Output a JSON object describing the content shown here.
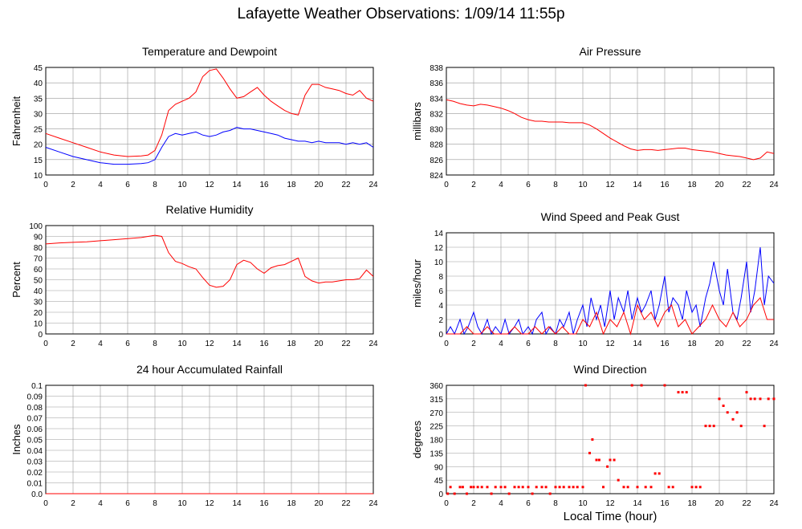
{
  "page": {
    "title": "Lafayette Weather Observations: 1/09/14 11:55p",
    "footer_xlabel": "Local Time (hour)"
  },
  "colors": {
    "series_red": "#ff0000",
    "series_blue": "#0000ff",
    "grid": "#999999",
    "frame": "#000000"
  },
  "chart_data": [
    {
      "id": "temp",
      "type": "line",
      "title": "Temperature and Dewpoint",
      "xlabel": "",
      "ylabel": "Fahrenheit",
      "xlim": [
        0,
        24
      ],
      "ylim": [
        10,
        45
      ],
      "xticks": [
        0,
        2,
        4,
        6,
        8,
        10,
        12,
        14,
        16,
        18,
        20,
        22,
        24
      ],
      "yticks": [
        10,
        15,
        20,
        25,
        30,
        35,
        40,
        45
      ],
      "grid": true,
      "series": [
        {
          "color": "#ff0000",
          "x": [
            0,
            1,
            2,
            3,
            4,
            5,
            6,
            7,
            7.5,
            8,
            8.5,
            9,
            9.5,
            10,
            10.5,
            11,
            11.5,
            12,
            12.5,
            13,
            13.5,
            14,
            14.5,
            15,
            15.5,
            16,
            16.5,
            17,
            17.5,
            18,
            18.5,
            19,
            19.5,
            20,
            20.5,
            21,
            21.5,
            22,
            22.5,
            23,
            23.5,
            24
          ],
          "y": [
            23.5,
            22,
            20.5,
            19,
            17.5,
            16.5,
            16,
            16.2,
            16.5,
            18,
            23,
            31,
            33,
            34,
            35,
            37,
            42,
            44,
            44.5,
            41.5,
            38,
            35,
            35.5,
            37,
            38.5,
            36,
            34,
            32.5,
            31,
            30,
            29.5,
            36,
            39.5,
            39.5,
            38.5,
            38,
            37.5,
            36.5,
            36,
            37.5,
            35,
            34
          ]
        },
        {
          "color": "#0000ff",
          "x": [
            0,
            1,
            2,
            3,
            4,
            5,
            6,
            7,
            7.5,
            8,
            8.5,
            9,
            9.5,
            10,
            10.5,
            11,
            11.5,
            12,
            12.5,
            13,
            13.5,
            14,
            14.5,
            15,
            15.5,
            16,
            16.5,
            17,
            17.5,
            18,
            18.5,
            19,
            19.5,
            20,
            20.5,
            21,
            21.5,
            22,
            22.5,
            23,
            23.5,
            24
          ],
          "y": [
            19,
            17.5,
            16,
            15,
            14,
            13.5,
            13.5,
            13.7,
            14,
            15,
            19,
            22.5,
            23.5,
            23,
            23.5,
            24,
            23,
            22.5,
            23,
            24,
            24.5,
            25.5,
            25,
            25,
            24.5,
            24,
            23.5,
            23,
            22,
            21.5,
            21,
            21,
            20.5,
            21,
            20.5,
            20.5,
            20.5,
            20,
            20.5,
            20,
            20.5,
            19
          ]
        }
      ]
    },
    {
      "id": "pressure",
      "type": "line",
      "title": "Air Pressure",
      "xlabel": "",
      "ylabel": "millibars",
      "xlim": [
        0,
        24
      ],
      "ylim": [
        824,
        838
      ],
      "xticks": [
        0,
        2,
        4,
        6,
        8,
        10,
        12,
        14,
        16,
        18,
        20,
        22,
        24
      ],
      "yticks": [
        824,
        826,
        828,
        830,
        832,
        834,
        836,
        838
      ],
      "grid": true,
      "series": [
        {
          "color": "#ff0000",
          "x": [
            0,
            0.5,
            1,
            1.5,
            2,
            2.5,
            3,
            3.5,
            4,
            4.5,
            5,
            5.5,
            6,
            6.5,
            7,
            7.5,
            8,
            8.5,
            9,
            9.5,
            10,
            10.5,
            11,
            11.5,
            12,
            12.5,
            13,
            13.5,
            14,
            14.5,
            15,
            15.5,
            16,
            16.5,
            17,
            17.5,
            18,
            18.5,
            19,
            19.5,
            20,
            20.5,
            21,
            21.5,
            22,
            22.5,
            23,
            23.5,
            24
          ],
          "y": [
            833.8,
            833.6,
            833.3,
            833.1,
            833,
            833.2,
            833.1,
            832.9,
            832.7,
            832.4,
            832,
            831.5,
            831.2,
            831,
            831,
            830.9,
            830.9,
            830.9,
            830.8,
            830.8,
            830.8,
            830.5,
            830,
            829.4,
            828.8,
            828.3,
            827.8,
            827.4,
            827.2,
            827.3,
            827.3,
            827.2,
            827.3,
            827.4,
            827.5,
            827.5,
            827.3,
            827.2,
            827.1,
            827,
            826.8,
            826.6,
            826.5,
            826.4,
            826.2,
            826,
            826.2,
            827,
            826.8
          ]
        }
      ]
    },
    {
      "id": "humidity",
      "type": "line",
      "title": "Relative Humidity",
      "xlabel": "",
      "ylabel": "Percent",
      "xlim": [
        0,
        24
      ],
      "ylim": [
        0,
        100
      ],
      "xticks": [
        0,
        2,
        4,
        6,
        8,
        10,
        12,
        14,
        16,
        18,
        20,
        22,
        24
      ],
      "yticks": [
        0,
        10,
        20,
        30,
        40,
        50,
        60,
        70,
        80,
        90,
        100
      ],
      "grid": true,
      "series": [
        {
          "color": "#ff0000",
          "x": [
            0,
            1,
            2,
            3,
            4,
            5,
            6,
            7,
            7.5,
            8,
            8.5,
            9,
            9.5,
            10,
            10.5,
            11,
            11.5,
            12,
            12.5,
            13,
            13.5,
            14,
            14.5,
            15,
            15.5,
            16,
            16.5,
            17,
            17.5,
            18,
            18.5,
            19,
            19.5,
            20,
            20.5,
            21,
            21.5,
            22,
            22.5,
            23,
            23.5,
            24
          ],
          "y": [
            83,
            84,
            84.5,
            85,
            86,
            87,
            88,
            89,
            90,
            91,
            90,
            75,
            67,
            65,
            62,
            60,
            52,
            45,
            43,
            44,
            50,
            64,
            68,
            66,
            60,
            56,
            61,
            63,
            64,
            67,
            70,
            53,
            49,
            47,
            48,
            48,
            49,
            50,
            50,
            51,
            59,
            53
          ]
        }
      ]
    },
    {
      "id": "wind",
      "type": "line",
      "title": "Wind Speed and Peak Gust",
      "xlabel": "",
      "ylabel": "miles/hour",
      "xlim": [
        0,
        24
      ],
      "ylim": [
        0,
        14
      ],
      "xticks": [
        0,
        2,
        4,
        6,
        8,
        10,
        12,
        14,
        16,
        18,
        20,
        22,
        24
      ],
      "yticks": [
        0,
        2,
        4,
        6,
        8,
        10,
        12,
        14
      ],
      "grid": true,
      "series": [
        {
          "color": "#0000ff",
          "x": [
            0,
            0.3,
            0.6,
            1,
            1.3,
            1.6,
            2,
            2.3,
            2.6,
            3,
            3.3,
            3.6,
            4,
            4.3,
            4.6,
            5,
            5.3,
            5.6,
            6,
            6.3,
            6.6,
            7,
            7.3,
            7.6,
            8,
            8.3,
            8.6,
            9,
            9.3,
            9.6,
            10,
            10.3,
            10.6,
            11,
            11.3,
            11.6,
            12,
            12.3,
            12.6,
            13,
            13.3,
            13.6,
            14,
            14.3,
            14.6,
            15,
            15.3,
            15.6,
            16,
            16.3,
            16.6,
            17,
            17.3,
            17.6,
            18,
            18.3,
            18.6,
            19,
            19.3,
            19.6,
            20,
            20.3,
            20.6,
            21,
            21.3,
            21.6,
            22,
            22.3,
            22.6,
            23,
            23.3,
            23.6,
            24
          ],
          "y": [
            0,
            1,
            0,
            2,
            0,
            1,
            3,
            1,
            0,
            2,
            0,
            1,
            0,
            2,
            0,
            1,
            2,
            0,
            1,
            0,
            2,
            3,
            0,
            1,
            0,
            2,
            1,
            3,
            0,
            2,
            4,
            1,
            5,
            2,
            4,
            1,
            6,
            2,
            5,
            3,
            6,
            2,
            5,
            3,
            4,
            6,
            2,
            4,
            8,
            3,
            5,
            4,
            2,
            6,
            3,
            4,
            1,
            5,
            7,
            10,
            6,
            4,
            9,
            3,
            2,
            5,
            10,
            3,
            6,
            12,
            4,
            8,
            7
          ]
        },
        {
          "color": "#ff0000",
          "x": [
            0,
            0.5,
            1,
            1.5,
            2,
            2.5,
            3,
            3.5,
            4,
            4.5,
            5,
            5.5,
            6,
            6.5,
            7,
            7.5,
            8,
            8.5,
            9,
            9.5,
            10,
            10.5,
            11,
            11.5,
            12,
            12.5,
            13,
            13.5,
            14,
            14.5,
            15,
            15.5,
            16,
            16.5,
            17,
            17.5,
            18,
            18.5,
            19,
            19.5,
            20,
            20.5,
            21,
            21.5,
            22,
            22.5,
            23,
            23.5,
            24
          ],
          "y": [
            0,
            0,
            0,
            1,
            0,
            0,
            1,
            0,
            0,
            0,
            1,
            0,
            0,
            1,
            0,
            1,
            0,
            1,
            0,
            0,
            2,
            1,
            3,
            0,
            2,
            1,
            3,
            0,
            4,
            2,
            3,
            1,
            3,
            4,
            1,
            2,
            0,
            1,
            2,
            4,
            2,
            1,
            3,
            1,
            2,
            4,
            5,
            2,
            2
          ]
        }
      ]
    },
    {
      "id": "rain",
      "type": "line",
      "title": "24 hour Accumulated Rainfall",
      "xlabel": "",
      "ylabel": "Inches",
      "xlim": [
        0,
        24
      ],
      "ylim": [
        0,
        0.1
      ],
      "xticks": [
        0,
        2,
        4,
        6,
        8,
        10,
        12,
        14,
        16,
        18,
        20,
        22,
        24
      ],
      "yticks": [
        "0.0",
        "0.01",
        "0.02",
        "0.03",
        "0.04",
        "0.05",
        "0.06",
        "0.07",
        "0.08",
        "0.09",
        "0.1"
      ],
      "grid": true,
      "series": [
        {
          "color": "#ff0000",
          "x": [
            0,
            24
          ],
          "y": [
            0,
            0
          ]
        }
      ]
    },
    {
      "id": "direction",
      "type": "scatter",
      "title": "Wind Direction",
      "xlabel": "Local Time (hour)",
      "ylabel": "degrees",
      "xlim": [
        0,
        24
      ],
      "ylim": [
        0,
        360
      ],
      "xticks": [
        0,
        2,
        4,
        6,
        8,
        10,
        12,
        14,
        16,
        18,
        20,
        22,
        24
      ],
      "yticks": [
        0,
        45,
        90,
        135,
        180,
        225,
        270,
        315,
        360
      ],
      "grid": true,
      "series": [
        {
          "color": "#ff0000",
          "x": [
            0.1,
            0.3,
            0.6,
            1.0,
            1.2,
            1.5,
            1.8,
            2.0,
            2.3,
            2.6,
            3.0,
            3.3,
            3.6,
            4.0,
            4.3,
            4.6,
            5.0,
            5.3,
            5.6,
            6.0,
            6.3,
            6.6,
            7.0,
            7.3,
            7.6,
            8.0,
            8.3,
            8.6,
            9.0,
            9.3,
            9.6,
            10.0,
            10.2,
            10.5,
            10.7,
            11.0,
            11.2,
            11.5,
            11.8,
            12.0,
            12.3,
            12.6,
            13.0,
            13.3,
            13.6,
            14.0,
            14.3,
            14.6,
            15.0,
            15.3,
            15.6,
            16.0,
            16.3,
            16.6,
            17.0,
            17.3,
            17.6,
            18.0,
            18.3,
            18.6,
            19.0,
            19.3,
            19.6,
            20.0,
            20.3,
            20.6,
            21.0,
            21.3,
            21.6,
            22.0,
            22.3,
            22.6,
            23.0,
            23.3,
            23.6,
            24.0
          ],
          "y": [
            0,
            22,
            0,
            22,
            22,
            0,
            22,
            22,
            22,
            22,
            22,
            0,
            22,
            22,
            22,
            0,
            22,
            22,
            22,
            22,
            0,
            22,
            22,
            22,
            0,
            22,
            22,
            22,
            22,
            22,
            22,
            22,
            360,
            135,
            180,
            112,
            112,
            22,
            90,
            112,
            112,
            45,
            22,
            22,
            360,
            22,
            360,
            22,
            22,
            67,
            67,
            360,
            22,
            22,
            337,
            337,
            337,
            22,
            22,
            22,
            225,
            225,
            225,
            315,
            292,
            270,
            247,
            270,
            225,
            337,
            315,
            315,
            315,
            225,
            315,
            315
          ]
        }
      ]
    }
  ]
}
